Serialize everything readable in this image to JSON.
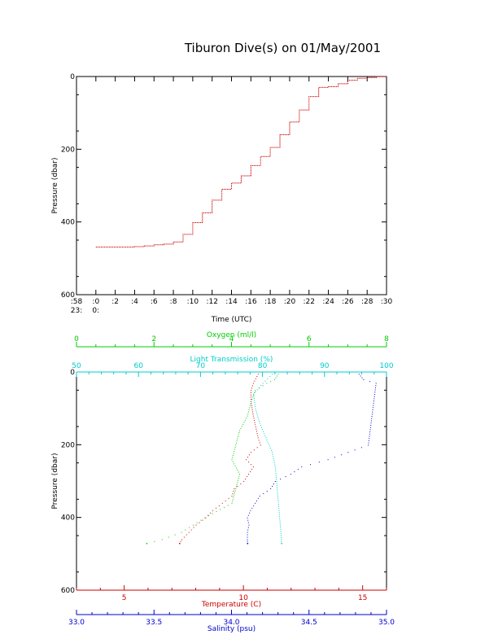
{
  "title": "Tiburon Dive(s) on 01/May/2001",
  "colors": {
    "axis": "#000000",
    "temperature": "#cc0000",
    "salinity": "#0000cc",
    "oxygen": "#00cc00",
    "transmission": "#00cccc"
  },
  "chart_data": [
    {
      "type": "line",
      "name": "pressure-vs-time",
      "xlabel": "Time (UTC)",
      "ylabel": "Pressure (dbar)",
      "xlim": [
        -2,
        30
      ],
      "ylim": [
        600,
        0
      ],
      "y_ticks": [
        0,
        200,
        400,
        600
      ],
      "x_ticks": [
        {
          "v": -2,
          "top": ":58",
          "bottom": "23:"
        },
        {
          "v": 0,
          "top": ":0",
          "bottom": "0:"
        },
        {
          "v": 2,
          "top": ":2",
          "bottom": ""
        },
        {
          "v": 4,
          "top": ":4",
          "bottom": ""
        },
        {
          "v": 6,
          "top": ":6",
          "bottom": ""
        },
        {
          "v": 8,
          "top": ":8",
          "bottom": ""
        },
        {
          "v": 10,
          "top": ":10",
          "bottom": ""
        },
        {
          "v": 12,
          "top": ":12",
          "bottom": ""
        },
        {
          "v": 14,
          "top": ":14",
          "bottom": ""
        },
        {
          "v": 16,
          "top": ":16",
          "bottom": ""
        },
        {
          "v": 18,
          "top": ":18",
          "bottom": ""
        },
        {
          "v": 20,
          "top": ":20",
          "bottom": ""
        },
        {
          "v": 22,
          "top": ":22",
          "bottom": ""
        },
        {
          "v": 24,
          "top": ":24",
          "bottom": ""
        },
        {
          "v": 26,
          "top": ":26",
          "bottom": ""
        },
        {
          "v": 28,
          "top": ":28",
          "bottom": ""
        },
        {
          "v": 30,
          "top": ":30",
          "bottom": ""
        }
      ],
      "series": [
        {
          "x": [
            0,
            1,
            2,
            3,
            4,
            5,
            6,
            7,
            8,
            9,
            10,
            11,
            12,
            13,
            14,
            15,
            16,
            17,
            18,
            19,
            20,
            21,
            22,
            23,
            24,
            25,
            26,
            27,
            28,
            29
          ],
          "y": [
            469,
            469,
            469,
            469,
            468,
            466,
            463,
            461,
            455,
            434,
            402,
            375,
            340,
            310,
            293,
            273,
            245,
            220,
            195,
            160,
            125,
            92,
            55,
            30,
            28,
            20,
            10,
            5,
            3,
            0
          ]
        }
      ]
    },
    {
      "type": "scatter",
      "name": "profiles-vs-pressure",
      "ylabel": "Pressure (dbar)",
      "ylim": [
        600,
        0
      ],
      "y_ticks": [
        0,
        200,
        400,
        600
      ],
      "axes": [
        {
          "key": "oxygen",
          "label": "Oxygen (ml/l)",
          "range": [
            0,
            8
          ],
          "ticks": [
            0,
            2,
            4,
            6,
            8
          ],
          "position": "top-outer"
        },
        {
          "key": "transmission",
          "label": "Light Transmission (%)",
          "range": [
            50,
            100
          ],
          "ticks": [
            50,
            60,
            70,
            80,
            90,
            100
          ],
          "position": "top-inner"
        },
        {
          "key": "temperature",
          "label": "Temperature (C)",
          "range": [
            3,
            16
          ],
          "ticks": [
            5,
            10,
            15
          ],
          "position": "bottom-inner"
        },
        {
          "key": "salinity",
          "label": "Salinity (psu)",
          "range": [
            33.0,
            35.0
          ],
          "ticks": [
            "33.0",
            "33.5",
            "34.0",
            "34.5",
            "35.0"
          ],
          "position": "bottom-outer"
        }
      ],
      "series": [
        {
          "key": "temperature",
          "pressure": [
            5,
            30,
            50,
            80,
            120,
            150,
            180,
            200,
            220,
            240,
            260,
            280,
            300,
            320,
            340,
            360,
            380,
            400,
            420,
            440,
            460,
            470
          ],
          "values": [
            10.6,
            10.4,
            10.3,
            10.3,
            10.4,
            10.5,
            10.6,
            10.7,
            10.3,
            10.1,
            10.4,
            10.2,
            10.0,
            9.6,
            9.5,
            9.1,
            8.7,
            8.4,
            8.0,
            7.7,
            7.4,
            7.3
          ]
        },
        {
          "key": "salinity",
          "pressure": [
            5,
            20,
            30,
            200,
            220,
            240,
            260,
            280,
            300,
            320,
            340,
            360,
            380,
            400,
            420,
            440,
            460,
            470
          ],
          "values": [
            34.82,
            34.85,
            34.93,
            34.88,
            34.75,
            34.62,
            34.45,
            34.38,
            34.28,
            34.25,
            34.18,
            34.15,
            34.12,
            34.1,
            34.11,
            34.1,
            34.1,
            34.1
          ]
        },
        {
          "key": "oxygen",
          "pressure": [
            5,
            20,
            30,
            50,
            80,
            120,
            160,
            200,
            240,
            280,
            320,
            360,
            400,
            420,
            440,
            460,
            470
          ],
          "values": [
            5.2,
            5.1,
            4.9,
            4.6,
            4.5,
            4.4,
            4.2,
            4.1,
            4.0,
            4.2,
            4.1,
            4.0,
            3.3,
            3.0,
            2.7,
            2.2,
            1.8
          ]
        },
        {
          "key": "transmission",
          "pressure": [
            5,
            30,
            60,
            100,
            140,
            180,
            220,
            260,
            300,
            340,
            380,
            420,
            460,
            470
          ],
          "values": [
            81.5,
            80.0,
            78.5,
            78.8,
            79.5,
            80.5,
            81.5,
            82.0,
            82.2,
            82.4,
            82.6,
            82.8,
            83.0,
            83.0
          ]
        }
      ]
    }
  ]
}
